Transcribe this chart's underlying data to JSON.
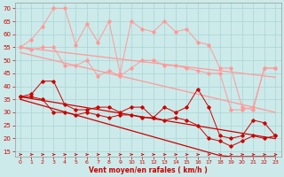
{
  "xlabel": "Vent moyen/en rafales ( km/h )",
  "ylabel_ticks": [
    15,
    20,
    25,
    30,
    35,
    40,
    45,
    50,
    55,
    60,
    65,
    70
  ],
  "xlim": [
    -0.5,
    23.5
  ],
  "ylim": [
    13,
    72
  ],
  "bg_color": "#cceaea",
  "grid_color": "#aad4d4",
  "x": [
    0,
    1,
    2,
    3,
    4,
    5,
    6,
    7,
    8,
    9,
    10,
    11,
    12,
    13,
    14,
    15,
    16,
    17,
    18,
    19,
    20,
    21,
    22,
    23
  ],
  "series": {
    "pink_upper_jagged": [
      55,
      58,
      63,
      70,
      70,
      56,
      64,
      57,
      65,
      45,
      65,
      62,
      61,
      65,
      61,
      62,
      57,
      56,
      47,
      47,
      32,
      31,
      47,
      47
    ],
    "pink_lower_jagged": [
      55,
      54,
      55,
      55,
      48,
      48,
      50,
      44,
      46,
      44,
      47,
      50,
      50,
      48,
      48,
      47,
      46,
      45,
      45,
      31,
      31,
      32,
      47,
      47
    ],
    "pink_trend_upper": [
      55,
      54.5,
      54.0,
      53.5,
      53.0,
      52.5,
      52.0,
      51.5,
      51.0,
      50.5,
      50.0,
      49.5,
      49.0,
      48.5,
      48.0,
      47.5,
      47.0,
      46.5,
      46.0,
      45.5,
      45.0,
      44.5,
      44.0,
      43.5
    ],
    "pink_trend_lower": [
      53,
      52.0,
      51.0,
      50.0,
      49.0,
      48.0,
      47.0,
      46.0,
      45.0,
      44.0,
      43.0,
      42.0,
      41.0,
      40.0,
      39.0,
      38.0,
      37.0,
      36.0,
      35.0,
      34.0,
      33.0,
      32.0,
      31.0,
      30.0
    ],
    "red_upper_jagged": [
      36,
      37,
      42,
      42,
      33,
      31,
      31,
      32,
      32,
      30,
      32,
      32,
      28,
      32,
      30,
      32,
      39,
      32,
      21,
      20,
      21,
      27,
      26,
      21
    ],
    "red_lower_jagged": [
      36,
      36,
      35,
      30,
      30,
      29,
      30,
      29,
      28,
      29,
      29,
      28,
      28,
      27,
      28,
      27,
      25,
      20,
      19,
      17,
      19,
      21,
      20,
      21
    ],
    "red_trend_upper": [
      36,
      35.3,
      34.6,
      33.9,
      33.2,
      32.5,
      31.8,
      31.1,
      30.4,
      29.7,
      29.0,
      28.3,
      27.6,
      26.9,
      26.2,
      25.5,
      24.8,
      24.1,
      23.4,
      22.7,
      22.0,
      21.3,
      20.6,
      19.9
    ],
    "red_trend_lower": [
      35,
      33.8,
      32.6,
      31.4,
      30.2,
      29.0,
      27.8,
      26.6,
      25.4,
      24.2,
      23.0,
      21.8,
      20.6,
      19.4,
      18.2,
      17.0,
      15.8,
      14.6,
      13.4,
      13.0,
      13.0,
      13.0,
      13.0,
      13.0
    ]
  },
  "pink_color": "#ff9999",
  "red_color": "#cc0000",
  "label_color": "#cc0000"
}
